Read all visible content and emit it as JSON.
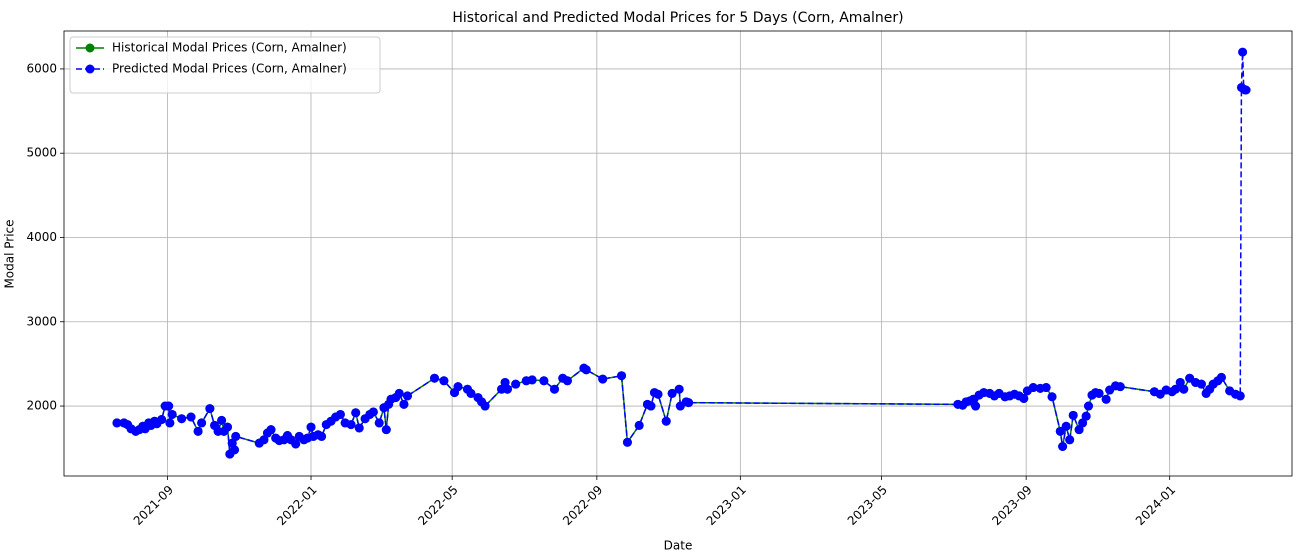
{
  "chart_data": {
    "type": "line",
    "title": "Historical and Predicted Modal Prices for 5 Days (Corn, Amalner)",
    "x_label": "Date",
    "y_label": "Modal Price",
    "grid": true,
    "legend": "upper left",
    "xlim": [
      18783,
      19827
    ],
    "xticks": [
      {
        "value": 18871,
        "label": "2021-09"
      },
      {
        "value": 18993,
        "label": "2022-01"
      },
      {
        "value": 19113,
        "label": "2022-05"
      },
      {
        "value": 19236,
        "label": "2022-09"
      },
      {
        "value": 19358,
        "label": "2023-01"
      },
      {
        "value": 19478,
        "label": "2023-05"
      },
      {
        "value": 19601,
        "label": "2023-09"
      },
      {
        "value": 19723,
        "label": "2024-01"
      }
    ],
    "ylim": [
      1170,
      6450
    ],
    "yticks": [
      2000,
      3000,
      4000,
      5000,
      6000
    ],
    "series": [
      {
        "name": "Historical Modal Prices (Corn, Amalner)",
        "color": "#008000",
        "linestyle": "solid",
        "x": [
          18828,
          18834,
          18837,
          18840,
          18844,
          18847,
          18850,
          18852,
          18855,
          18857,
          18860,
          18862,
          18866,
          18869,
          18872,
          18873,
          18875,
          18883,
          18891,
          18897,
          18900,
          18907,
          18911,
          18914,
          18917,
          18919,
          18922,
          18924,
          18926,
          18928,
          18929,
          18949,
          18953,
          18956,
          18959,
          18963,
          18966,
          18970,
          18973,
          18976,
          18980,
          18983,
          18987,
          18990,
          18993,
          18995,
          18999,
          19002,
          19006,
          19010,
          19014,
          19018,
          19022,
          19027,
          19031,
          19034,
          19039,
          19043,
          19046,
          19051,
          19055,
          19057,
          19059,
          19061,
          19065,
          19068,
          19072,
          19075,
          19098,
          19106,
          19115,
          19118,
          19126,
          19129,
          19135,
          19138,
          19141,
          19155,
          19158,
          19160,
          19167,
          19176,
          19181,
          19191,
          19200,
          19207,
          19211,
          19225,
          19227,
          19241,
          19257,
          19262,
          19272,
          19279,
          19282,
          19285,
          19288,
          19295,
          19300,
          19306,
          19307,
          19312,
          19314,
          19543,
          19547,
          19550,
          19553,
          19556,
          19558,
          19561,
          19565,
          19570,
          19574,
          19578,
          19583,
          19587,
          19591,
          19595,
          19599,
          19602,
          19607,
          19613,
          19618,
          19623,
          19630,
          19632,
          19635,
          19638,
          19641,
          19646,
          19649,
          19652,
          19654,
          19657,
          19660,
          19663,
          19669,
          19672,
          19677,
          19681,
          19710,
          19715,
          19720,
          19725,
          19728,
          19732,
          19735,
          19740,
          19745,
          19750,
          19754,
          19757,
          19760,
          19764,
          19767,
          19774,
          19779,
          19783
        ],
        "values": [
          1800,
          1800,
          1780,
          1730,
          1700,
          1720,
          1760,
          1730,
          1800,
          1770,
          1820,
          1790,
          1840,
          2000,
          2000,
          1800,
          1900,
          1850,
          1870,
          1700,
          1800,
          1970,
          1770,
          1700,
          1830,
          1700,
          1750,
          1430,
          1560,
          1480,
          1640,
          1560,
          1600,
          1680,
          1720,
          1620,
          1590,
          1600,
          1650,
          1600,
          1550,
          1640,
          1600,
          1620,
          1750,
          1640,
          1660,
          1640,
          1780,
          1820,
          1870,
          1900,
          1800,
          1780,
          1920,
          1740,
          1850,
          1900,
          1930,
          1800,
          1980,
          1720,
          2020,
          2080,
          2100,
          2150,
          2020,
          2120,
          2330,
          2300,
          2160,
          2230,
          2200,
          2150,
          2100,
          2050,
          2000,
          2200,
          2280,
          2200,
          2260,
          2300,
          2310,
          2300,
          2200,
          2330,
          2300,
          2450,
          2430,
          2320,
          2360,
          1570,
          1770,
          2020,
          2000,
          2160,
          2140,
          1820,
          2150,
          2200,
          2000,
          2050,
          2040,
          2020,
          2010,
          2050,
          2060,
          2080,
          2000,
          2130,
          2160,
          2150,
          2120,
          2150,
          2110,
          2120,
          2140,
          2120,
          2090,
          2180,
          2220,
          2210,
          2220,
          2110,
          1700,
          1520,
          1760,
          1600,
          1890,
          1720,
          1800,
          1880,
          2000,
          2130,
          2160,
          2150,
          2080,
          2190,
          2240,
          2230,
          2170,
          2140,
          2190,
          2170,
          2200,
          2280,
          2200,
          2330,
          2280,
          2260,
          2150,
          2200,
          2260,
          2300,
          2340,
          2180,
          2140,
          2120
        ]
      },
      {
        "name": "Predicted Modal Prices (Corn, Amalner)",
        "color": "#0000ff",
        "linestyle": "dashed",
        "x": [
          18828,
          18834,
          18837,
          18840,
          18844,
          18847,
          18850,
          18852,
          18855,
          18857,
          18860,
          18862,
          18866,
          18869,
          18872,
          18873,
          18875,
          18883,
          18891,
          18897,
          18900,
          18907,
          18911,
          18914,
          18917,
          18919,
          18922,
          18924,
          18926,
          18928,
          18929,
          18949,
          18953,
          18956,
          18959,
          18963,
          18966,
          18970,
          18973,
          18976,
          18980,
          18983,
          18987,
          18990,
          18993,
          18995,
          18999,
          19002,
          19006,
          19010,
          19014,
          19018,
          19022,
          19027,
          19031,
          19034,
          19039,
          19043,
          19046,
          19051,
          19055,
          19057,
          19059,
          19061,
          19065,
          19068,
          19072,
          19075,
          19098,
          19106,
          19115,
          19118,
          19126,
          19129,
          19135,
          19138,
          19141,
          19155,
          19158,
          19160,
          19167,
          19176,
          19181,
          19191,
          19200,
          19207,
          19211,
          19225,
          19227,
          19241,
          19257,
          19262,
          19272,
          19279,
          19282,
          19285,
          19288,
          19295,
          19300,
          19306,
          19307,
          19312,
          19314,
          19543,
          19547,
          19550,
          19553,
          19556,
          19558,
          19561,
          19565,
          19570,
          19574,
          19578,
          19583,
          19587,
          19591,
          19595,
          19599,
          19602,
          19607,
          19613,
          19618,
          19623,
          19630,
          19632,
          19635,
          19638,
          19641,
          19646,
          19649,
          19652,
          19654,
          19657,
          19660,
          19663,
          19669,
          19672,
          19677,
          19681,
          19710,
          19715,
          19720,
          19725,
          19728,
          19732,
          19735,
          19740,
          19745,
          19750,
          19754,
          19757,
          19760,
          19764,
          19767,
          19774,
          19779,
          19783,
          19784,
          19785,
          19786,
          19787,
          19788
        ],
        "values": [
          1800,
          1800,
          1780,
          1730,
          1700,
          1720,
          1760,
          1730,
          1800,
          1770,
          1820,
          1790,
          1840,
          2000,
          2000,
          1800,
          1900,
          1850,
          1870,
          1700,
          1800,
          1970,
          1770,
          1700,
          1830,
          1700,
          1750,
          1430,
          1560,
          1480,
          1640,
          1560,
          1600,
          1680,
          1720,
          1620,
          1590,
          1600,
          1650,
          1600,
          1550,
          1640,
          1600,
          1620,
          1750,
          1640,
          1660,
          1640,
          1780,
          1820,
          1870,
          1900,
          1800,
          1780,
          1920,
          1740,
          1850,
          1900,
          1930,
          1800,
          1980,
          1720,
          2020,
          2080,
          2100,
          2150,
          2020,
          2120,
          2330,
          2300,
          2160,
          2230,
          2200,
          2150,
          2100,
          2050,
          2000,
          2200,
          2280,
          2200,
          2260,
          2300,
          2310,
          2300,
          2200,
          2330,
          2300,
          2450,
          2430,
          2320,
          2360,
          1570,
          1770,
          2020,
          2000,
          2160,
          2140,
          1820,
          2150,
          2200,
          2000,
          2050,
          2040,
          2020,
          2010,
          2050,
          2060,
          2080,
          2000,
          2130,
          2160,
          2150,
          2120,
          2150,
          2110,
          2120,
          2140,
          2120,
          2090,
          2180,
          2220,
          2210,
          2220,
          2110,
          1700,
          1520,
          1760,
          1600,
          1890,
          1720,
          1800,
          1880,
          2000,
          2130,
          2160,
          2150,
          2080,
          2190,
          2240,
          2230,
          2170,
          2140,
          2190,
          2170,
          2200,
          2280,
          2200,
          2330,
          2280,
          2260,
          2150,
          2200,
          2260,
          2300,
          2340,
          2180,
          2140,
          2120,
          5780,
          6200,
          5760,
          5750,
          5750
        ]
      }
    ]
  }
}
